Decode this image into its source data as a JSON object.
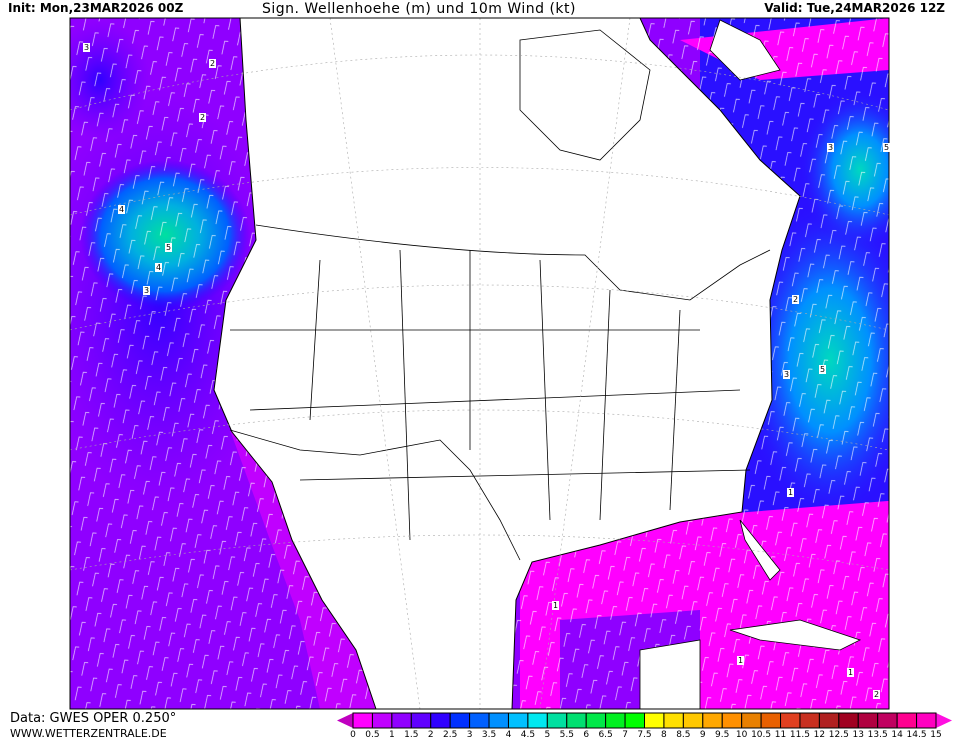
{
  "header": {
    "init": "Init: Mon,23MAR2026 00Z",
    "title": "Sign. Wellenhoehe (m) und 10m Wind (kt)",
    "valid": "Valid: Tue,24MAR2026 12Z"
  },
  "footer": {
    "data_source": "Data: GWES OPER 0.250°",
    "website": "WWW.WETTERZENTRALE.DE"
  },
  "map": {
    "region": "North America",
    "field": "significant wave height",
    "contour_labels": [
      {
        "text": "3"
      },
      {
        "text": "2"
      },
      {
        "text": "4"
      },
      {
        "text": "5"
      },
      {
        "text": "4"
      },
      {
        "text": "3"
      },
      {
        "text": "2"
      },
      {
        "text": "3"
      },
      {
        "text": "5"
      },
      {
        "text": "2"
      },
      {
        "text": "3"
      },
      {
        "text": "5"
      },
      {
        "text": "1"
      },
      {
        "text": "1"
      },
      {
        "text": "1"
      },
      {
        "text": "1"
      },
      {
        "text": "2"
      }
    ],
    "colors": {
      "land": "#ffffff",
      "border": "#000000",
      "pacific": "#8f00ff",
      "atlantic": "#2a10ff",
      "gulf": "#ff00ff",
      "high_waves": "#00d8c0"
    }
  },
  "colorbar": {
    "labels": [
      "0",
      "0.5",
      "1",
      "1.5",
      "2",
      "2.5",
      "3",
      "3.5",
      "4",
      "4.5",
      "5",
      "5.5",
      "6",
      "6.5",
      "7",
      "7.5",
      "8",
      "8.5",
      "9",
      "9.5",
      "10",
      "10.5",
      "11",
      "11.5",
      "12",
      "12.5",
      "13",
      "13.5",
      "14",
      "14.5",
      "15"
    ],
    "under_color": "#c000c0",
    "over_color": "#ff10e0",
    "colors": [
      "#ff00ff",
      "#c000ff",
      "#9000ff",
      "#6000ff",
      "#3000ff",
      "#0030ff",
      "#0060ff",
      "#0090ff",
      "#00c0ff",
      "#00e8f0",
      "#00e0a0",
      "#00e070",
      "#00e848",
      "#00f020",
      "#00ff00",
      "#ffff00",
      "#ffe000",
      "#ffc800",
      "#ffa800",
      "#ff9000",
      "#e88000",
      "#e86000",
      "#e04020",
      "#c83020",
      "#b02020",
      "#a00020",
      "#b00040",
      "#c00060",
      "#ff0090",
      "#ff00c0"
    ]
  }
}
